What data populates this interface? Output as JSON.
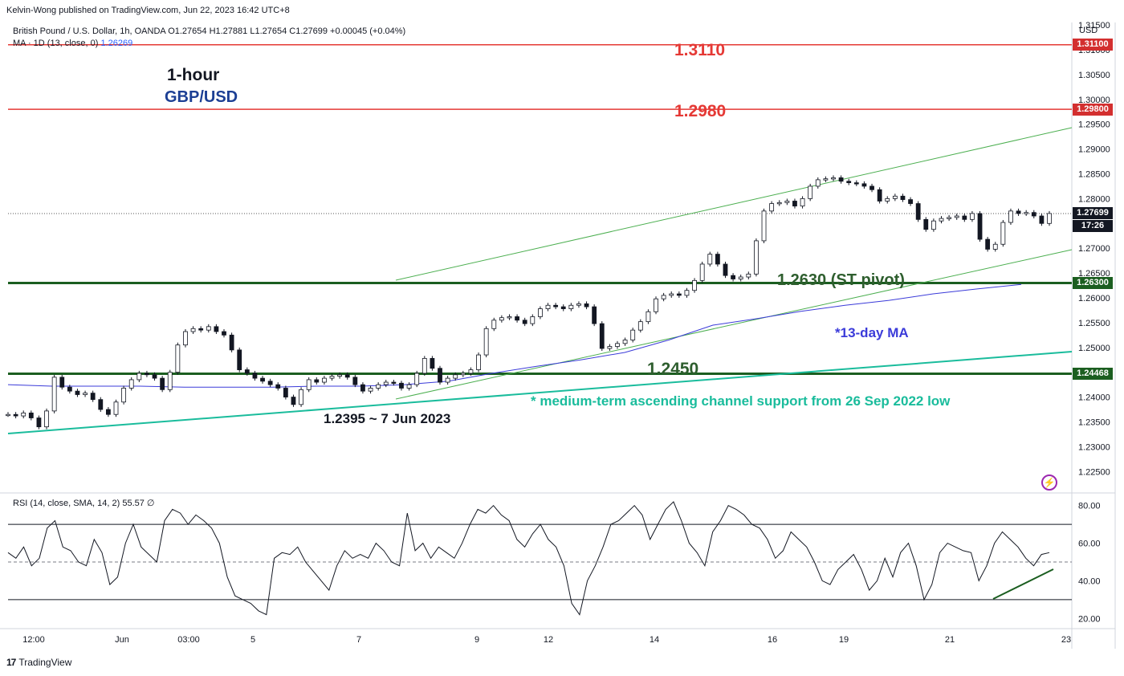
{
  "publisher": "Kelvin-Wong published on TradingView.com, Jun 22, 2023 16:42 UTC+8",
  "brand": {
    "logo": "17",
    "name": "TradingView"
  },
  "legend": {
    "line1": "British Pound / U.S. Dollar, 1h, OANDA  O1.27654  H1.27881  L1.27654  C1.27699  +0.00045 (+0.04%)",
    "ma_label": "MA · 1D (13, close, 0)",
    "ma_value": "1.26269",
    "rsi": "RSI (14, close, SMA, 14, 2)  55.57  ∅"
  },
  "annotations": {
    "timeframe": "1-hour",
    "pair": "GBP/USD",
    "resistance1": "1.3110",
    "resistance2": "1.2980",
    "pivot": "1.2630 (ST pivot)",
    "ma": "*13-day MA",
    "support": "1.2450",
    "channel": "* medium-term ascending channel support from 26 Sep 2022 low",
    "low": "1.2395 ~ 7 Jun 2023"
  },
  "colors": {
    "resistance": "#e53935",
    "pivot": "#1b5e20",
    "ma": "#3b3bd9",
    "channel": "#1abc9c",
    "trend": "#4caf50"
  },
  "chart_data": [
    {
      "type": "line",
      "title": "British Pound / U.S. Dollar, 1h, OANDA",
      "currency": "USD",
      "y_ticks": [
        "1.31500",
        "1.31000",
        "1.30500",
        "1.30000",
        "1.29500",
        "1.29000",
        "1.28500",
        "1.28000",
        "1.27500",
        "1.27000",
        "1.26500",
        "1.26000",
        "1.25500",
        "1.25000",
        "1.24500",
        "1.24000",
        "1.23500",
        "1.23000",
        "1.22500"
      ],
      "ylim": [
        1.221,
        1.3155
      ],
      "x_ticks": [
        "12:00",
        "Jun",
        "03:00",
        "5",
        "7",
        "9",
        "12",
        "14",
        "16",
        "19",
        "21",
        "23"
      ],
      "price_tags": [
        {
          "label": "1.31100",
          "value": 1.311,
          "color": "red"
        },
        {
          "label": "1.29800",
          "value": 1.298,
          "color": "red"
        },
        {
          "label": "1.26300",
          "value": 1.263,
          "color": "green"
        },
        {
          "label": "1.24468",
          "value": 1.24468,
          "color": "green"
        },
        {
          "label": "1.27699",
          "value": 1.27699,
          "color": "black"
        }
      ],
      "countdown": "17:26",
      "last": 1.27699,
      "horizontal_levels": [
        1.311,
        1.298,
        1.263,
        1.2447
      ],
      "series": [
        {
          "values": [
            1.2365,
            1.2362,
            1.2368,
            1.2358,
            1.234,
            1.2372,
            1.244,
            1.242,
            1.2412,
            1.2405,
            1.2408,
            1.2395,
            1.2375,
            1.2365,
            1.239,
            1.2418,
            1.2435,
            1.2448,
            1.2445,
            1.2438,
            1.2415,
            1.245,
            1.2505,
            1.2532,
            1.2538,
            1.2535,
            1.2542,
            1.2532,
            1.2525,
            1.2495,
            1.2455,
            1.2448,
            1.2438,
            1.2432,
            1.2425,
            1.2418,
            1.24,
            1.2385,
            1.2415,
            1.2435,
            1.243,
            1.2438,
            1.2442,
            1.2445,
            1.244,
            1.2425,
            1.2412,
            1.2418,
            1.2425,
            1.243,
            1.2428,
            1.2418,
            1.2425,
            1.2448,
            1.2478,
            1.2458,
            1.243,
            1.2438,
            1.2445,
            1.2448,
            1.2455,
            1.2485,
            1.2538,
            1.2555,
            1.256,
            1.2562,
            1.2555,
            1.2548,
            1.2562,
            1.2578,
            1.2585,
            1.2582,
            1.2578,
            1.2585,
            1.2588,
            1.2582,
            1.2548,
            1.2498,
            1.2502,
            1.2508,
            1.2515,
            1.2535,
            1.2552,
            1.2572,
            1.2598,
            1.2605,
            1.2608,
            1.2605,
            1.2615,
            1.2635,
            1.2668,
            1.2688,
            1.2668,
            1.2645,
            1.2638,
            1.2642,
            1.2648,
            1.2715,
            1.2775,
            1.279,
            1.2792,
            1.2795,
            1.2785,
            1.28,
            1.2825,
            1.2838,
            1.284,
            1.2842,
            1.2835,
            1.2832,
            1.283,
            1.2825,
            1.2818,
            1.2795,
            1.28,
            1.2805,
            1.2798,
            1.279,
            1.2758,
            1.2738,
            1.2755,
            1.276,
            1.2762,
            1.2765,
            1.2758,
            1.277,
            1.2718,
            1.2698,
            1.2708,
            1.2752,
            1.2775,
            1.277,
            1.2772,
            1.2765,
            1.275,
            1.277
          ]
        },
        {
          "name": "13-day MA",
          "values": [
            1.2425,
            1.2422,
            1.2422,
            1.2422,
            1.242,
            1.242,
            1.242,
            1.2422,
            1.2422,
            1.2425,
            1.2432,
            1.2448,
            1.2462,
            1.2475,
            1.249,
            1.2515,
            1.2545,
            1.2558,
            1.2573,
            1.2585,
            1.2595,
            1.2608,
            1.2618,
            1.2627
          ]
        }
      ]
    },
    {
      "type": "line",
      "title": "RSI (14, close, SMA, 14, 2)",
      "y_ticks": [
        "80.00",
        "60.00",
        "40.00",
        "20.00"
      ],
      "ylim": [
        15,
        85
      ],
      "bands": [
        30,
        50,
        70
      ],
      "last": 55.57,
      "series": [
        {
          "values": [
            55,
            52,
            58,
            48,
            52,
            68,
            72,
            58,
            56,
            50,
            48,
            62,
            55,
            38,
            42,
            60,
            70,
            58,
            54,
            50,
            72,
            78,
            76,
            70,
            75,
            72,
            68,
            60,
            42,
            32,
            30,
            28,
            24,
            22,
            52,
            55,
            54,
            58,
            50,
            45,
            40,
            35,
            48,
            56,
            52,
            54,
            52,
            60,
            56,
            50,
            48,
            76,
            56,
            60,
            52,
            58,
            55,
            52,
            60,
            70,
            78,
            76,
            80,
            75,
            72,
            62,
            58,
            65,
            70,
            62,
            58,
            48,
            28,
            22,
            40,
            48,
            58,
            70,
            72,
            76,
            80,
            75,
            62,
            70,
            78,
            82,
            72,
            60,
            55,
            48,
            66,
            72,
            80,
            78,
            75,
            70,
            68,
            62,
            52,
            56,
            66,
            62,
            58,
            50,
            40,
            38,
            46,
            50,
            54,
            46,
            35,
            40,
            52,
            42,
            55,
            60,
            48,
            30,
            38,
            55,
            60,
            58,
            56,
            55,
            40,
            48,
            60,
            66,
            62,
            58,
            52,
            48,
            54,
            55
          ]
        }
      ]
    }
  ]
}
